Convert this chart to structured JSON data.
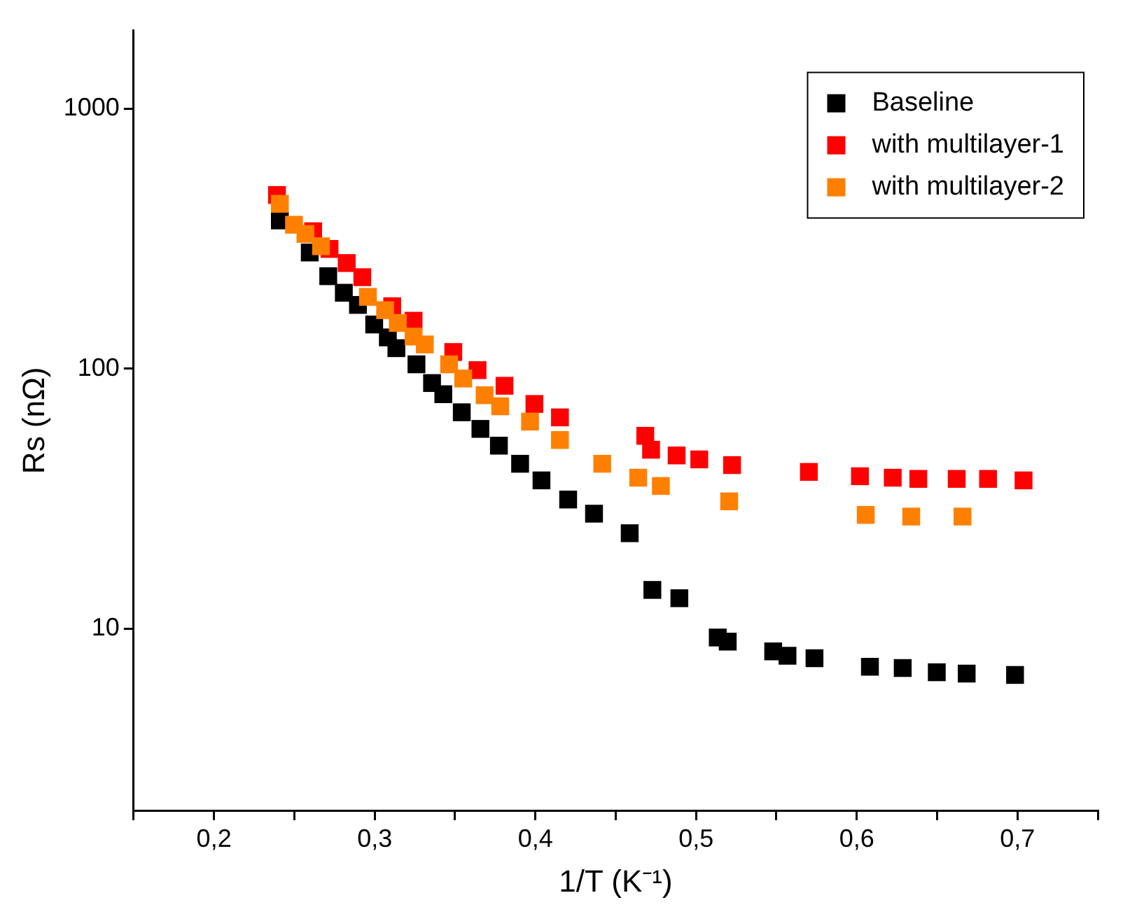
{
  "chart_data": {
    "type": "scatter",
    "xlabel": "1/T (K⁻¹)",
    "ylabel": "Rs (nΩ)",
    "log": "y",
    "grid": false,
    "legend": "top right",
    "marker": "square",
    "xlim": [
      0.15,
      0.75
    ],
    "xticks": [
      {
        "value": 0.15,
        "label": null
      },
      {
        "value": 0.2,
        "label": "0,2"
      },
      {
        "value": 0.25,
        "label": null
      },
      {
        "value": 0.3,
        "label": "0,3"
      },
      {
        "value": 0.35,
        "label": null
      },
      {
        "value": 0.4,
        "label": "0,4"
      },
      {
        "value": 0.45,
        "label": null
      },
      {
        "value": 0.5,
        "label": "0,5"
      },
      {
        "value": 0.55,
        "label": null
      },
      {
        "value": 0.6,
        "label": "0,6"
      },
      {
        "value": 0.65,
        "label": null
      },
      {
        "value": 0.7,
        "label": "0,7"
      },
      {
        "value": 0.75,
        "label": null
      }
    ],
    "ylim": [
      2,
      2000
    ],
    "yticks": [
      10,
      100,
      1000
    ],
    "series": [
      {
        "name": "Baseline",
        "color": "#000000",
        "x": [
          0.241,
          0.2596,
          0.2711,
          0.2808,
          0.2896,
          0.2997,
          0.3082,
          0.3135,
          0.326,
          0.3357,
          0.3427,
          0.3542,
          0.3658,
          0.3773,
          0.3905,
          0.4038,
          0.4204,
          0.4365,
          0.4587,
          0.4728,
          0.4896,
          0.5135,
          0.5197,
          0.548,
          0.5569,
          0.5737,
          0.6082,
          0.6286,
          0.6498,
          0.6684,
          0.6985
        ],
        "values": [
          372,
          280,
          227,
          196,
          176,
          148,
          132,
          120,
          104,
          88.1,
          79.8,
          68.0,
          58.7,
          50.6,
          43.1,
          37.2,
          31.4,
          27.7,
          23.3,
          14.1,
          13.1,
          9.25,
          8.92,
          8.18,
          7.87,
          7.7,
          7.14,
          7.06,
          6.8,
          6.72,
          6.64
        ]
      },
      {
        "name": "with multilayer-1",
        "color": "#ff0000",
        "x": [
          0.2392,
          0.2617,
          0.2719,
          0.2826,
          0.2923,
          0.3109,
          0.3242,
          0.3489,
          0.364,
          0.3808,
          0.3994,
          0.4153,
          0.4684,
          0.472,
          0.4879,
          0.502,
          0.5224,
          0.5702,
          0.602,
          0.6224,
          0.6383,
          0.6622,
          0.6817,
          0.7038
        ],
        "values": [
          466,
          338,
          289,
          255,
          225,
          174,
          153,
          116,
          98.8,
          86.0,
          73.2,
          65.0,
          55.2,
          48.8,
          46.4,
          44.8,
          42.6,
          40.1,
          38.6,
          38.1,
          37.7,
          37.7,
          37.7,
          37.2
        ]
      },
      {
        "name": "with multilayer-2",
        "color": "#ff8000",
        "x": [
          0.241,
          0.2498,
          0.2569,
          0.2666,
          0.2958,
          0.3065,
          0.3144,
          0.3242,
          0.3312,
          0.3463,
          0.3551,
          0.3684,
          0.3781,
          0.3967,
          0.4153,
          0.4416,
          0.464,
          0.4781,
          0.5206,
          0.6056,
          0.6339,
          0.6658
        ],
        "values": [
          431,
          358,
          330,
          296,
          189,
          168,
          150,
          133,
          124,
          104,
          91.7,
          79.1,
          71.7,
          62.6,
          53.2,
          43.1,
          38.1,
          35.4,
          30.9,
          27.4,
          27.0,
          27.0
        ]
      }
    ]
  }
}
